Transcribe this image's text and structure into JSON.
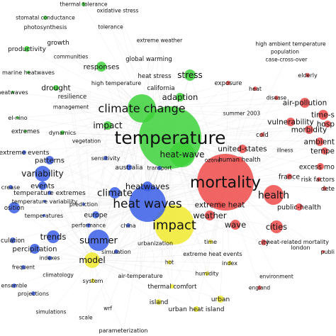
{
  "colors": {
    "green": "#3dd13a",
    "blue": "#3a5ee8",
    "red": "#ef4a4a",
    "yellow": "#f0ea2e",
    "link": "#d8d8d8"
  },
  "nodes": [
    {
      "label": "thermal tolerance",
      "cluster": "green",
      "weight": 1
    },
    {
      "label": "oxidative stress",
      "cluster": "green",
      "weight": 1
    },
    {
      "label": "stomatal conductance",
      "cluster": "green",
      "weight": 1
    },
    {
      "label": "photosynthesis",
      "cluster": "green",
      "weight": 1
    },
    {
      "label": "tolerance",
      "cluster": "green",
      "weight": 1
    },
    {
      "label": "extreme weather",
      "cluster": "green",
      "weight": 1
    },
    {
      "label": "productivity",
      "cluster": "green",
      "weight": 2
    },
    {
      "label": "growth",
      "cluster": "green",
      "weight": 2
    },
    {
      "label": "communities",
      "cluster": "green",
      "weight": 1
    },
    {
      "label": "global warming",
      "cluster": "green",
      "weight": 2
    },
    {
      "label": "responses",
      "cluster": "green",
      "weight": 3
    },
    {
      "label": "marine heatwaves",
      "cluster": "green",
      "weight": 2
    },
    {
      "label": "heat stress",
      "cluster": "green",
      "weight": 2
    },
    {
      "label": "stress",
      "cluster": "green",
      "weight": 4
    },
    {
      "label": "high temperature",
      "cluster": "green",
      "weight": 2
    },
    {
      "label": "heatwaves",
      "cluster": "green",
      "weight": 2
    },
    {
      "label": "drought",
      "cluster": "green",
      "weight": 3
    },
    {
      "label": "california",
      "cluster": "green",
      "weight": 2
    },
    {
      "label": "resilience",
      "cluster": "green",
      "weight": 2
    },
    {
      "label": "adaption",
      "cluster": "green",
      "weight": 3
    },
    {
      "label": "management",
      "cluster": "green",
      "weight": 1
    },
    {
      "label": "el-nino",
      "cluster": "green",
      "weight": 1
    },
    {
      "label": "climate change",
      "cluster": "green",
      "weight": 6
    },
    {
      "label": "extremes",
      "cluster": "green",
      "weight": 2
    },
    {
      "label": "dynamics",
      "cluster": "green",
      "weight": 1
    },
    {
      "label": "impact",
      "cluster": "green",
      "weight": 3
    },
    {
      "label": "vegetation",
      "cluster": "green",
      "weight": 1
    },
    {
      "label": "temperature",
      "cluster": "green",
      "weight": 10
    },
    {
      "label": "heat-wave",
      "cluster": "green",
      "weight": 5
    },
    {
      "label": "high ambient temperature",
      "cluster": "red",
      "weight": 1
    },
    {
      "label": "population",
      "cluster": "red",
      "weight": 1
    },
    {
      "label": "case-cross-over",
      "cluster": "red",
      "weight": 1
    },
    {
      "label": "elderly",
      "cluster": "red",
      "weight": 1
    },
    {
      "label": "exposure",
      "cluster": "red",
      "weight": 2
    },
    {
      "label": "heat",
      "cluster": "red",
      "weight": 2
    },
    {
      "label": "disease",
      "cluster": "red",
      "weight": 1
    },
    {
      "label": "air-pollution",
      "cluster": "red",
      "weight": 3
    },
    {
      "label": "summer 2003",
      "cluster": "red",
      "weight": 1
    },
    {
      "label": "time-s",
      "cluster": "red",
      "weight": 2
    },
    {
      "label": "vulnerability",
      "cluster": "red",
      "weight": 3
    },
    {
      "label": "hosp",
      "cluster": "red",
      "weight": 2
    },
    {
      "label": "morbidity",
      "cluster": "red",
      "weight": 3
    },
    {
      "label": "cold",
      "cluster": "red",
      "weight": 1
    },
    {
      "label": "ambient",
      "cluster": "red",
      "weight": 2
    },
    {
      "label": "united-states",
      "cluster": "red",
      "weight": 3
    },
    {
      "label": "illness",
      "cluster": "red",
      "weight": 1
    },
    {
      "label": "tempe",
      "cluster": "red",
      "weight": 2
    },
    {
      "label": "human health",
      "cluster": "red",
      "weight": 2
    },
    {
      "label": "excess mo",
      "cluster": "red",
      "weight": 2
    },
    {
      "label": "france",
      "cluster": "red",
      "weight": 2
    },
    {
      "label": "risk factors",
      "cluster": "red",
      "weight": 1
    },
    {
      "label": "dete",
      "cluster": "red",
      "weight": 1
    },
    {
      "label": "mortality",
      "cluster": "red",
      "weight": 9
    },
    {
      "label": "health",
      "cluster": "red",
      "weight": 4
    },
    {
      "label": "extreme heat",
      "cluster": "red",
      "weight": 2
    },
    {
      "label": "public-health",
      "cluster": "red",
      "weight": 2
    },
    {
      "label": "weather",
      "cluster": "red",
      "weight": 3
    },
    {
      "label": "wave",
      "cluster": "red",
      "weight": 3
    },
    {
      "label": "cities",
      "cluster": "red",
      "weight": 3
    },
    {
      "label": "heat-related mortality",
      "cluster": "red",
      "weight": 1
    },
    {
      "label": "city",
      "cluster": "red",
      "weight": 2
    },
    {
      "label": "london",
      "cluster": "red",
      "weight": 1
    },
    {
      "label": "publi",
      "cluster": "red",
      "weight": 1
    },
    {
      "label": "environment",
      "cluster": "red",
      "weight": 1
    },
    {
      "label": "england",
      "cluster": "red",
      "weight": 1
    },
    {
      "label": "ozone",
      "cluster": "red",
      "weight": 1
    },
    {
      "label": "extreme events",
      "cluster": "blue",
      "weight": 2
    },
    {
      "label": "variability",
      "cluster": "blue",
      "weight": 3
    },
    {
      "label": "patterns",
      "cluster": "blue",
      "weight": 2
    },
    {
      "label": "sensitivity",
      "cluster": "blue",
      "weight": 1
    },
    {
      "label": "australia",
      "cluster": "blue",
      "weight": 2
    },
    {
      "label": "transport",
      "cluster": "blue",
      "weight": 1
    },
    {
      "label": "events",
      "cluster": "blue",
      "weight": 2
    },
    {
      "label": "temperature extremes",
      "cluster": "blue",
      "weight": 2
    },
    {
      "label": "crease",
      "cluster": "blue",
      "weight": 1
    },
    {
      "label": "temperature variability",
      "cluster": "blue",
      "weight": 1
    },
    {
      "label": "climate",
      "cluster": "blue",
      "weight": 4
    },
    {
      "label": "heatwaves",
      "cluster": "blue",
      "weight": 3
    },
    {
      "label": "heat waves",
      "cluster": "blue",
      "weight": 6
    },
    {
      "label": "osition",
      "cluster": "blue",
      "weight": 1
    },
    {
      "label": "temperatures",
      "cluster": "blue",
      "weight": 1
    },
    {
      "label": "prediction",
      "cluster": "blue",
      "weight": 1
    },
    {
      "label": "europe",
      "cluster": "blue",
      "weight": 2
    },
    {
      "label": "performance",
      "cluster": "blue",
      "weight": 1
    },
    {
      "label": "china",
      "cluster": "blue",
      "weight": 1
    },
    {
      "label": "trends",
      "cluster": "blue",
      "weight": 3
    },
    {
      "label": "summer",
      "cluster": "blue",
      "weight": 4
    },
    {
      "label": "culation",
      "cluster": "blue",
      "weight": 1
    },
    {
      "label": "percipitation",
      "cluster": "blue",
      "weight": 2
    },
    {
      "label": "simulation",
      "cluster": "blue",
      "weight": 1
    },
    {
      "label": "indexes",
      "cluster": "blue",
      "weight": 1
    },
    {
      "label": "frequent",
      "cluster": "blue",
      "weight": 1
    },
    {
      "label": "urbanization",
      "cluster": "blue",
      "weight": 1
    },
    {
      "label": "climatology",
      "cluster": "blue",
      "weight": 1
    },
    {
      "label": "ensemble",
      "cluster": "blue",
      "weight": 1
    },
    {
      "label": "projections",
      "cluster": "blue",
      "weight": 1
    },
    {
      "label": "simulations",
      "cluster": "blue",
      "weight": 1
    },
    {
      "label": "scale",
      "cluster": "blue",
      "weight": 1
    },
    {
      "label": "wrf",
      "cluster": "blue",
      "weight": 1
    },
    {
      "label": "parameterization",
      "cluster": "blue",
      "weight": 1
    },
    {
      "label": "impact",
      "cluster": "yellow",
      "weight": 6
    },
    {
      "label": "model",
      "cluster": "yellow",
      "weight": 3
    },
    {
      "label": "time",
      "cluster": "yellow",
      "weight": 1
    },
    {
      "label": "extreme heat events",
      "cluster": "yellow",
      "weight": 1
    },
    {
      "label": "index",
      "cluster": "yellow",
      "weight": 1
    },
    {
      "label": "hot",
      "cluster": "yellow",
      "weight": 1
    },
    {
      "label": "humidity",
      "cluster": "yellow",
      "weight": 1
    },
    {
      "label": "system",
      "cluster": "yellow",
      "weight": 1
    },
    {
      "label": "air-temperature",
      "cluster": "yellow",
      "weight": 1
    },
    {
      "label": "thermal comfort",
      "cluster": "yellow",
      "weight": 1
    },
    {
      "label": "urban",
      "cluster": "yellow",
      "weight": 2
    },
    {
      "label": "island",
      "cluster": "yellow",
      "weight": 2
    },
    {
      "label": "urban heat island",
      "cluster": "yellow",
      "weight": 2
    }
  ]
}
